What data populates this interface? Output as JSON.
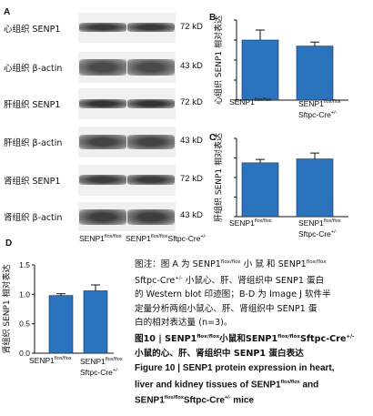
{
  "panel_a": {
    "letter": "A",
    "blots": [
      {
        "label": "心组织 SENP1",
        "kda": "72 kD"
      },
      {
        "label": "心组织 β-actin",
        "kda": "43 kD"
      },
      {
        "label": "肝组织 SENP1",
        "kda": "72 kD"
      },
      {
        "label": "肝组织 β-actin",
        "kda": "43 kD"
      },
      {
        "label": "肾组织 SENP1",
        "kda": "72 kD"
      },
      {
        "label": "肾组织 β-actin",
        "kda": "43 kD"
      }
    ],
    "sample_labels": {
      "left_main": "SENP1",
      "left_sup": "flox/flox",
      "right_main": "SENP1",
      "right_sup": "flox/flox",
      "right_tail": "Sftpc-Cre",
      "right_tail_sup": "+/-"
    }
  },
  "chart_data": [
    {
      "type": "bar",
      "panel": "B",
      "ylabel": "心组织 SENP1 相对表达",
      "categories": [
        "SENP1 flox/flox",
        "SENP1 flox/flox Sftpc-Cre+/-"
      ],
      "values": [
        1.5,
        1.35
      ],
      "errors": [
        0.25,
        0.1
      ],
      "ylim": [
        0,
        2.0
      ],
      "yticks": [],
      "color": "#2b74bd"
    },
    {
      "type": "bar",
      "panel": "C",
      "ylabel": "肝组织 SENP1 相对表达",
      "categories": [
        "SENP1 flox/flox",
        "Sftpc-Cre+/-"
      ],
      "values": [
        1.1,
        1.18
      ],
      "errors": [
        0.07,
        0.12
      ],
      "ylim": [
        0,
        1.6
      ],
      "yticks": [],
      "color": "#2b74bd"
    },
    {
      "type": "bar",
      "panel": "D",
      "ylabel": "肾组织 SENP1 相对表达",
      "categories": [
        "SENP1 flox/flox",
        "Sftpc-Cre+/-"
      ],
      "values": [
        0.98,
        1.06
      ],
      "errors": [
        0.03,
        0.1
      ],
      "ylim": [
        0,
        1.5
      ],
      "yticks": [
        "0.0",
        "0.5",
        "1.0",
        "1.5"
      ],
      "color": "#2b74bd"
    }
  ],
  "x_labels": {
    "b_left_main": "SENP1",
    "b_left_sup": "flox/flox",
    "b_right_main": "SENP1",
    "b_right_sup": "flox/flox",
    "b_right_tail": "Sftpc-Cre",
    "b_right_tail_sup": "+/-",
    "c_left_main": "SENP1",
    "c_left_sup": "flox/flox",
    "c_right_main": "SENP1",
    "c_right_sup": "flox/flox",
    "c_right_tail": "Sftpc-Cre",
    "c_right_tail_sup": "+/-",
    "d_left_main": "SENP1",
    "d_left_sup": "flox/flox",
    "d_right_main": "SENP1",
    "d_right_sup": "flox/flox",
    "d_right_tail": "Sftpc-Cre",
    "d_right_tail_sup": "+/-"
  },
  "caption": {
    "zh_l1": "图注：图 A 为 SENP1",
    "zh_l1_sup": "flox/flox",
    "zh_l1b": " 小 鼠 和 SENP1",
    "zh_l1_sup2": "flox/flox",
    "zh_l2a": "Sftpc-Cre",
    "zh_l2_sup": "+/-",
    "zh_l2b": " 小鼠心、肝、肾组织中 SENP1 蛋白",
    "zh_l3": "的 Western blot 印迹图；B-D 为 Image J 软件半",
    "zh_l4": "定量分析两组小鼠心、肝、肾组织中 SENP1 蛋",
    "zh_l5": "白的相对表达量 (n=3)。",
    "fig_zh_a": "图10 | SENP1",
    "fig_zh_sup1": "flox/flox",
    "fig_zh_b": "小鼠和SENP1",
    "fig_zh_sup2": "flox/flox",
    "fig_zh_c": "Sftpc-Cre",
    "fig_zh_sup3": "+/-",
    "fig_zh_l2": "小鼠的心、肝、肾组织中 SENP1 蛋白表达",
    "en_l1": "Figure 10  |  SENP1 protein expression in heart,",
    "en_l2a": "liver and kidney tissues of SENP1",
    "en_l2_sup": "flox/flox",
    "en_l2b": " and",
    "en_l3a": "SENP1",
    "en_l3_sup": "flox/flox",
    "en_l3b": "Sftpc-Cre",
    "en_l3_sup2": "+/-",
    "en_l3c": " mice"
  }
}
